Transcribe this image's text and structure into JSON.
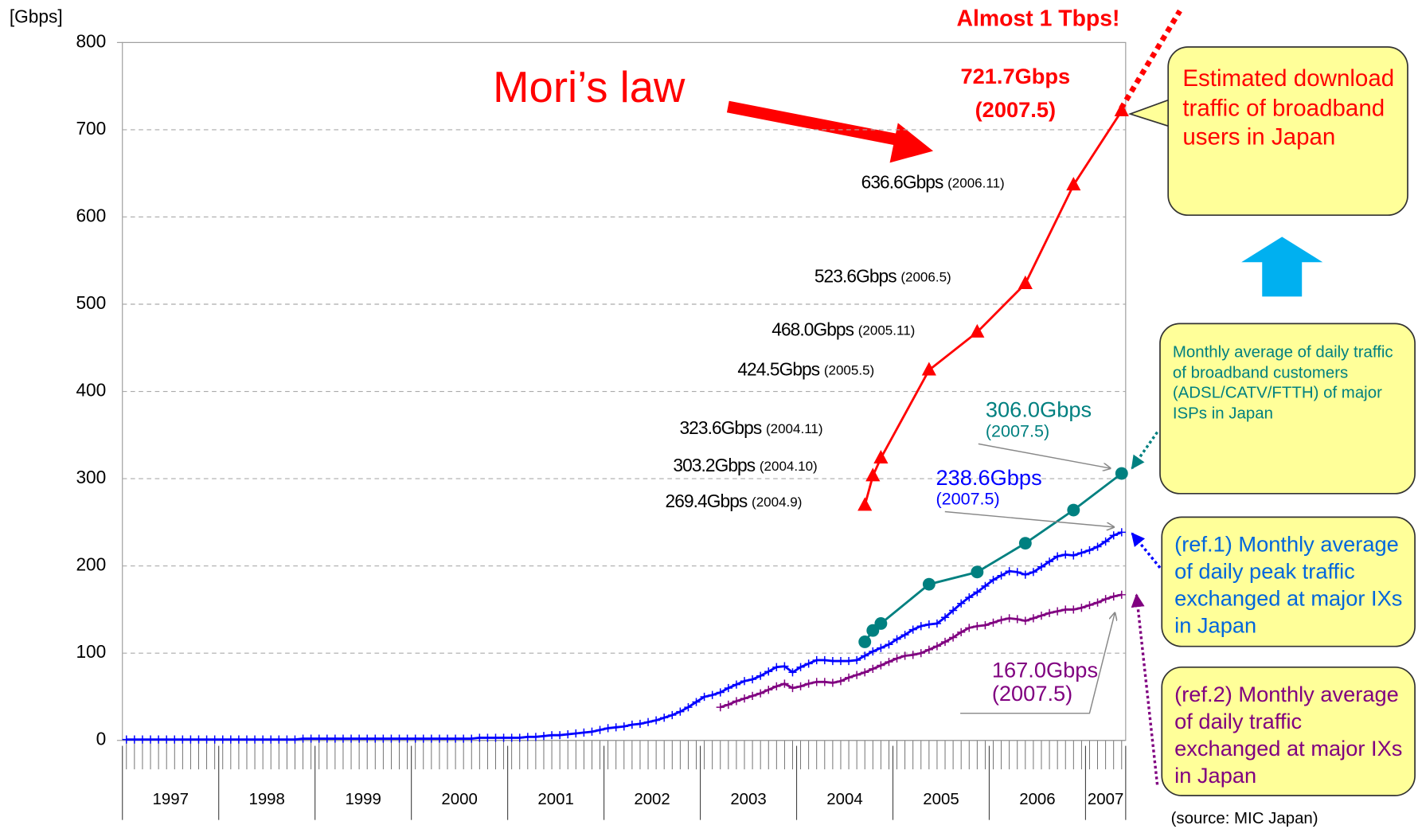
{
  "chart_data": {
    "type": "line",
    "y_label": "[Gbps]",
    "ylim": [
      0,
      800
    ],
    "yticks": [
      0,
      100,
      200,
      300,
      400,
      500,
      600,
      700,
      800
    ],
    "grid": true,
    "year_labels": [
      "1997",
      "1998",
      "1999",
      "2000",
      "2001",
      "2002",
      "2003",
      "2004",
      "2005",
      "2006",
      "2007"
    ],
    "x": [
      "1997.1",
      "1997.2",
      "1997.3",
      "1997.4",
      "1997.5",
      "1997.6",
      "1997.7",
      "1997.8",
      "1997.9",
      "1997.10",
      "1997.11",
      "1997.12",
      "1998.1",
      "1998.2",
      "1998.3",
      "1998.4",
      "1998.5",
      "1998.6",
      "1998.7",
      "1998.8",
      "1998.9",
      "1998.10",
      "1998.11",
      "1998.12",
      "1999.1",
      "1999.2",
      "1999.3",
      "1999.4",
      "1999.5",
      "1999.6",
      "1999.7",
      "1999.8",
      "1999.9",
      "1999.10",
      "1999.11",
      "1999.12",
      "2000.1",
      "2000.2",
      "2000.3",
      "2000.4",
      "2000.5",
      "2000.6",
      "2000.7",
      "2000.8",
      "2000.9",
      "2000.10",
      "2000.11",
      "2000.12",
      "2001.1",
      "2001.2",
      "2001.3",
      "2001.4",
      "2001.5",
      "2001.6",
      "2001.7",
      "2001.8",
      "2001.9",
      "2001.10",
      "2001.11",
      "2001.12",
      "2002.1",
      "2002.2",
      "2002.3",
      "2002.4",
      "2002.5",
      "2002.6",
      "2002.7",
      "2002.8",
      "2002.9",
      "2002.10",
      "2002.11",
      "2002.12",
      "2003.1",
      "2003.2",
      "2003.3",
      "2003.4",
      "2003.5",
      "2003.6",
      "2003.7",
      "2003.8",
      "2003.9",
      "2003.10",
      "2003.11",
      "2003.12",
      "2004.1",
      "2004.2",
      "2004.3",
      "2004.4",
      "2004.5",
      "2004.6",
      "2004.7",
      "2004.8",
      "2004.9",
      "2004.10",
      "2004.11",
      "2004.12",
      "2005.1",
      "2005.2",
      "2005.3",
      "2005.4",
      "2005.5",
      "2005.6",
      "2005.7",
      "2005.8",
      "2005.9",
      "2005.10",
      "2005.11",
      "2005.12",
      "2006.1",
      "2006.2",
      "2006.3",
      "2006.4",
      "2006.5",
      "2006.6",
      "2006.7",
      "2006.8",
      "2006.9",
      "2006.10",
      "2006.11",
      "2006.12",
      "2007.1",
      "2007.2",
      "2007.3",
      "2007.4",
      "2007.5"
    ],
    "series": [
      {
        "name": "Estimated download traffic of broadband users in Japan",
        "color": "#ff0000",
        "marker": "triangle",
        "x": [
          "2004.9",
          "2004.10",
          "2004.11",
          "2005.5",
          "2005.11",
          "2006.5",
          "2006.11",
          "2007.5"
        ],
        "values": [
          269.4,
          303.2,
          323.6,
          424.5,
          468.0,
          523.6,
          636.6,
          721.7
        ],
        "value_labels": [
          "269.4Gbps",
          "303.2Gbps",
          "323.6Gbps",
          "424.5Gbps",
          "468.0Gbps",
          "523.6Gbps",
          "636.6Gbps",
          "721.7Gbps"
        ],
        "date_labels": [
          "(2004.9)",
          "(2004.10)",
          "(2004.11)",
          "(2005.5)",
          "(2005.11)",
          "(2006.5)",
          "(2006.11)",
          "(2007.5)"
        ]
      },
      {
        "name": "Monthly average of daily traffic of broadband customers (ADSL/CATV/FTTH) of major ISPs in Japan",
        "color": "#008080",
        "marker": "circle",
        "x": [
          "2004.9",
          "2004.10",
          "2004.11",
          "2005.5",
          "2005.11",
          "2006.5",
          "2006.11",
          "2007.5"
        ],
        "values": [
          113,
          126,
          134,
          179,
          193,
          226,
          264,
          306.0
        ],
        "end_label": "306.0Gbps",
        "end_date": "(2007.5)"
      },
      {
        "name": "(ref.1) Monthly average of daily peak traffic exchanged at major IXs in Japan",
        "color": "#0000ff",
        "marker": "plus",
        "values": [
          1,
          1,
          1,
          1,
          1,
          1,
          1,
          1,
          1,
          1,
          1,
          1,
          1,
          1,
          1,
          1,
          1,
          1,
          1,
          1,
          1,
          1,
          2,
          2,
          2,
          2,
          2,
          2,
          2,
          2,
          2,
          2,
          2,
          2,
          2,
          2,
          2,
          2,
          2,
          2,
          2,
          2,
          2,
          2,
          3,
          3,
          3,
          3,
          3,
          3,
          4,
          4,
          5,
          6,
          6,
          7,
          8,
          9,
          10,
          12,
          14,
          15,
          16,
          18,
          19,
          21,
          23,
          26,
          29,
          33,
          38,
          44,
          50,
          52,
          55,
          60,
          64,
          68,
          70,
          74,
          79,
          84,
          85,
          78,
          84,
          88,
          92,
          92,
          91,
          91,
          91,
          92,
          97,
          102,
          106,
          110,
          116,
          121,
          127,
          131,
          133,
          134,
          141,
          149,
          157,
          164,
          170,
          177,
          184,
          189,
          194,
          193,
          190,
          193,
          199,
          205,
          211,
          213,
          212,
          215,
          218,
          222,
          228,
          235,
          238.6
        ],
        "end_label": "238.6Gbps",
        "end_date": "(2007.5)"
      },
      {
        "name": "(ref.2) Monthly average of daily traffic exchanged at major IXs in Japan",
        "color": "#800080",
        "marker": "plus",
        "values": [
          null,
          null,
          null,
          null,
          null,
          null,
          null,
          null,
          null,
          null,
          null,
          null,
          null,
          null,
          null,
          null,
          null,
          null,
          null,
          null,
          null,
          null,
          null,
          null,
          null,
          null,
          null,
          null,
          null,
          null,
          null,
          null,
          null,
          null,
          null,
          null,
          null,
          null,
          null,
          null,
          null,
          null,
          null,
          null,
          null,
          null,
          null,
          null,
          null,
          null,
          null,
          null,
          null,
          null,
          null,
          null,
          null,
          null,
          null,
          null,
          null,
          null,
          null,
          null,
          null,
          null,
          null,
          null,
          null,
          null,
          null,
          null,
          null,
          null,
          38,
          41,
          45,
          48,
          51,
          54,
          58,
          62,
          65,
          60,
          62,
          65,
          67,
          67,
          66,
          68,
          72,
          75,
          78,
          82,
          86,
          90,
          94,
          97,
          98,
          100,
          104,
          108,
          113,
          118,
          124,
          129,
          131,
          132,
          135,
          138,
          140,
          139,
          137,
          140,
          143,
          146,
          148,
          150,
          150,
          152,
          155,
          158,
          162,
          165,
          167.0
        ],
        "end_label": "167.0Gbps",
        "end_date": "(2007.5)"
      }
    ],
    "annotations": {
      "trend": "Mori’s law",
      "projection": "Almost 1 Tbps!",
      "source": "(source: MIC Japan)"
    }
  }
}
